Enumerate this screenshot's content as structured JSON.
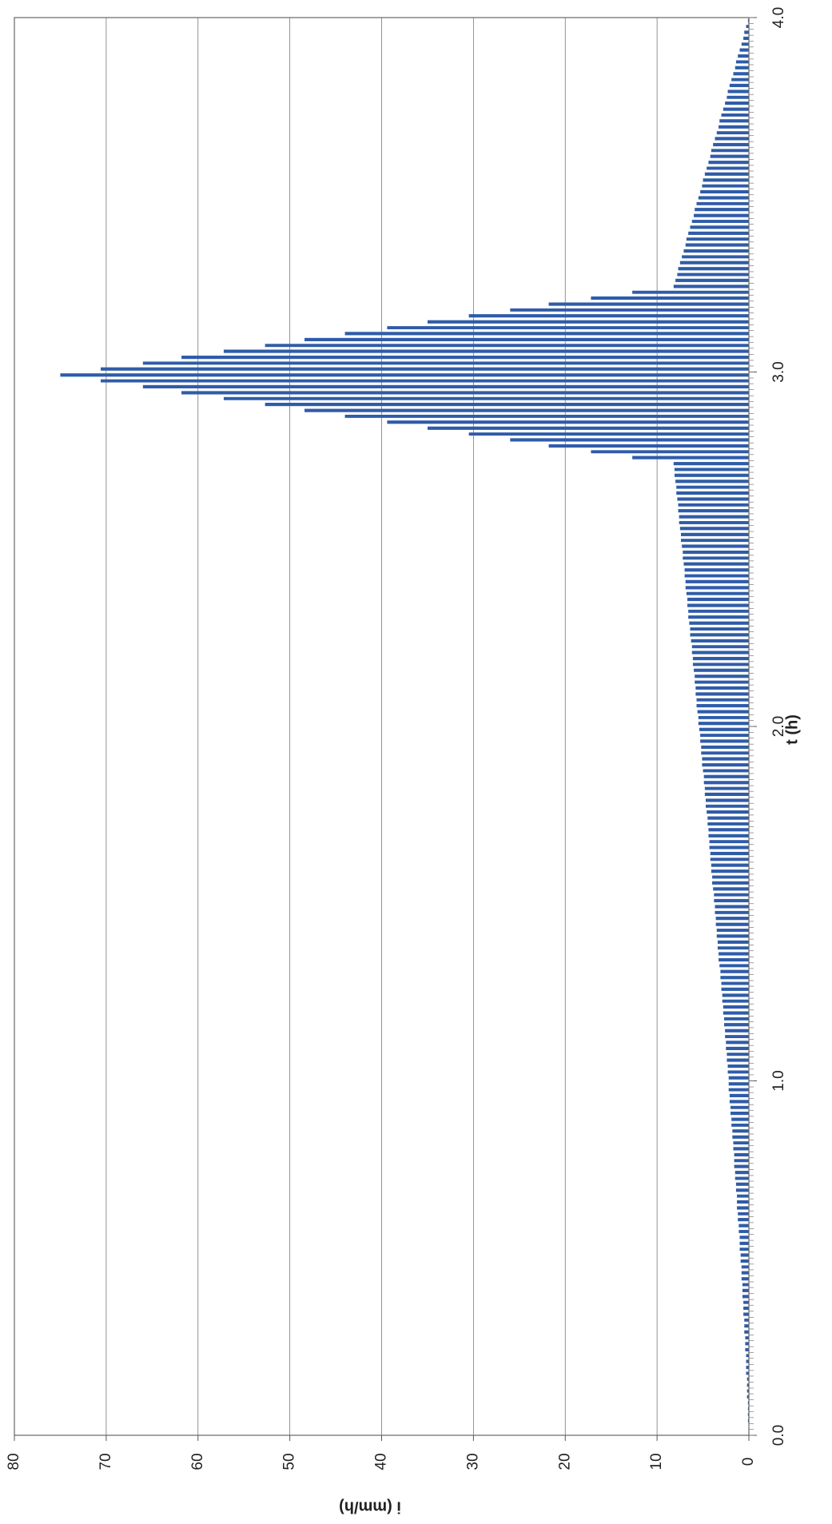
{
  "chart_data": {
    "type": "histogram",
    "xlabel": "t (h)",
    "ylabel": "i (mm/h)",
    "color": "#2f5ca8",
    "grid": true,
    "xlim": [
      0,
      4
    ],
    "ylim": [
      0,
      80
    ],
    "xticks": [
      {
        "value": 0,
        "label": "0.0"
      },
      {
        "value": 1,
        "label": "1.0"
      },
      {
        "value": 2,
        "label": "2.0"
      },
      {
        "value": 3,
        "label": "3.0"
      },
      {
        "value": 4,
        "label": "4.0"
      }
    ],
    "yticks": [
      0,
      10,
      20,
      30,
      40,
      50,
      60,
      70,
      80
    ],
    "bins": [
      0,
      0.017,
      0.033,
      0.05,
      0.067,
      0.083,
      0.1,
      0.117,
      0.133,
      0.15,
      0.167,
      0.183,
      0.2,
      0.217,
      0.233,
      0.25,
      0.267,
      0.283,
      0.3,
      0.317,
      0.333,
      0.35,
      0.367,
      0.383,
      0.4,
      0.417,
      0.433,
      0.45,
      0.467,
      0.483,
      0.5,
      0.517,
      0.533,
      0.55,
      0.567,
      0.583,
      0.6,
      0.617,
      0.633,
      0.65,
      0.667,
      0.683,
      0.7,
      0.717,
      0.733,
      0.75,
      0.767,
      0.783,
      0.8,
      0.817,
      0.833,
      0.85,
      0.867,
      0.883,
      0.9,
      0.917,
      0.933,
      0.95,
      0.967,
      0.983,
      1.0,
      1.017,
      1.033,
      1.05,
      1.067,
      1.083,
      1.1,
      1.117,
      1.133,
      1.15,
      1.167,
      1.183,
      1.2,
      1.217,
      1.233,
      1.25,
      1.267,
      1.283,
      1.3,
      1.317,
      1.333,
      1.35,
      1.367,
      1.383,
      1.4,
      1.417,
      1.433,
      1.45,
      1.467,
      1.483,
      1.5,
      1.517,
      1.533,
      1.55,
      1.567,
      1.583,
      1.6,
      1.617,
      1.633,
      1.65,
      1.667,
      1.683,
      1.7,
      1.717,
      1.733,
      1.75,
      1.767,
      1.783,
      1.8,
      1.817,
      1.833,
      1.85,
      1.867,
      1.883,
      1.9,
      1.917,
      1.933,
      1.95,
      1.967,
      1.983,
      2.0,
      2.017,
      2.033,
      2.05,
      2.067,
      2.083,
      2.1,
      2.117,
      2.133,
      2.15,
      2.167,
      2.183,
      2.2,
      2.217,
      2.233,
      2.25,
      2.267,
      2.283,
      2.3,
      2.317,
      2.333,
      2.35,
      2.367,
      2.383,
      2.4,
      2.417,
      2.433,
      2.45,
      2.467,
      2.483,
      2.5,
      2.517,
      2.533,
      2.55,
      2.567,
      2.583,
      2.6,
      2.617,
      2.633,
      2.65,
      2.667,
      2.683,
      2.7,
      2.717,
      2.733,
      2.75,
      2.767,
      2.783,
      2.8,
      2.817,
      2.833,
      2.85,
      2.867,
      2.883,
      2.9,
      2.917,
      2.933,
      2.95,
      2.967,
      2.983,
      3.0,
      3.017,
      3.033,
      3.05,
      3.067,
      3.083,
      3.1,
      3.117,
      3.133,
      3.15,
      3.167,
      3.183,
      3.2,
      3.217,
      3.233,
      3.25,
      3.267,
      3.283,
      3.3,
      3.317,
      3.333,
      3.35,
      3.367,
      3.383,
      3.4,
      3.417,
      3.433,
      3.45,
      3.467,
      3.483,
      3.5,
      3.517,
      3.533,
      3.55,
      3.567,
      3.583,
      3.6,
      3.617,
      3.633,
      3.65,
      3.667,
      3.683,
      3.7,
      3.717,
      3.733,
      3.75,
      3.767,
      3.783,
      3.8,
      3.817,
      3.833,
      3.85,
      3.867,
      3.883,
      3.9,
      3.917,
      3.933,
      3.95,
      3.967,
      3.983,
      4.0
    ],
    "values": [
      0.0,
      0.0,
      0.1,
      0.1,
      0.1,
      0.1,
      0.2,
      0.2,
      0.2,
      0.2,
      0.3,
      0.3,
      0.3,
      0.3,
      0.4,
      0.4,
      0.4,
      0.5,
      0.5,
      0.5,
      0.6,
      0.6,
      0.6,
      0.7,
      0.7,
      0.7,
      0.8,
      0.8,
      0.8,
      0.9,
      0.9,
      1.0,
      1.0,
      1.0,
      1.1,
      1.1,
      1.2,
      1.2,
      1.3,
      1.3,
      1.3,
      1.4,
      1.4,
      1.5,
      1.5,
      1.6,
      1.6,
      1.6,
      1.7,
      1.7,
      1.8,
      1.8,
      1.9,
      1.9,
      2.0,
      2.0,
      2.1,
      2.1,
      2.2,
      2.2,
      2.2,
      2.3,
      2.3,
      2.4,
      2.4,
      2.5,
      2.5,
      2.6,
      2.6,
      2.7,
      2.7,
      2.8,
      2.8,
      2.9,
      2.9,
      3.0,
      3.0,
      3.1,
      3.1,
      3.2,
      3.3,
      3.3,
      3.4,
      3.4,
      3.5,
      3.5,
      3.6,
      3.6,
      3.7,
      3.7,
      3.8,
      3.8,
      3.9,
      4.0,
      4.0,
      4.1,
      4.1,
      4.2,
      4.2,
      4.3,
      4.3,
      4.4,
      4.4,
      4.5,
      4.5,
      4.6,
      4.7,
      4.7,
      4.8,
      4.8,
      4.9,
      4.9,
      5.0,
      5.1,
      5.1,
      5.2,
      5.2,
      5.3,
      5.3,
      5.4,
      5.5,
      5.5,
      5.6,
      5.7,
      5.7,
      5.8,
      5.8,
      5.9,
      5.9,
      6.0,
      6.1,
      6.1,
      6.2,
      6.2,
      6.3,
      6.4,
      6.4,
      6.5,
      6.6,
      6.6,
      6.7,
      6.7,
      6.8,
      6.9,
      6.9,
      7.0,
      7.0,
      7.1,
      7.2,
      7.2,
      7.3,
      7.4,
      7.4,
      7.5,
      7.6,
      7.6,
      7.7,
      7.7,
      7.8,
      7.9,
      7.9,
      8.0,
      8.1,
      8.1,
      8.2,
      12.7,
      17.2,
      21.8,
      26.0,
      30.5,
      35.0,
      39.4,
      44.0,
      48.4,
      52.7,
      57.2,
      61.8,
      66.0,
      70.6,
      75.0,
      70.6,
      66.0,
      61.8,
      57.2,
      52.7,
      48.4,
      44.0,
      39.4,
      35.0,
      30.5,
      26.0,
      21.8,
      17.2,
      12.7,
      8.2,
      8.0,
      7.8,
      7.7,
      7.5,
      7.3,
      7.1,
      6.9,
      6.8,
      6.6,
      6.4,
      6.2,
      6.0,
      5.9,
      5.7,
      5.5,
      5.3,
      5.1,
      5.0,
      4.8,
      4.6,
      4.4,
      4.2,
      4.1,
      3.9,
      3.7,
      3.5,
      3.3,
      3.2,
      3.0,
      2.8,
      2.6,
      2.4,
      2.3,
      2.1,
      1.9,
      1.7,
      1.5,
      1.4,
      1.2,
      1.0,
      0.8,
      0.6,
      0.5,
      0.3,
      0.1
    ]
  }
}
